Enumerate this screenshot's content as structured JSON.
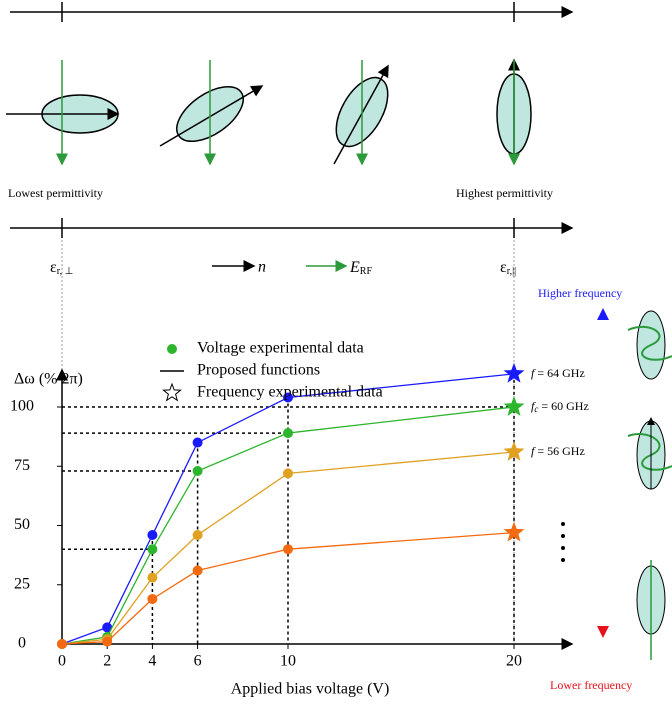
{
  "chart_data": {
    "type": "line",
    "y_label": "Δω (% 2π)",
    "x_label": "Applied bias voltage (V)",
    "x": [
      0,
      2,
      4,
      6,
      10,
      20
    ],
    "xlim": [
      0,
      20
    ],
    "ylim": [
      0,
      116
    ],
    "xticks": [
      0,
      2,
      4,
      6,
      10,
      20
    ],
    "yticks": [
      0,
      25,
      50,
      75,
      100
    ],
    "legend": [
      "Voltage experimental data",
      "Proposed functions",
      "Frequency experimental data"
    ],
    "series": [
      {
        "color": "#1a1aff",
        "values": [
          0,
          7,
          46,
          85,
          104,
          114
        ],
        "label_symbol": "f",
        "label_text": "= 64 GHz"
      },
      {
        "color": "#2db52d",
        "values": [
          0,
          3,
          40,
          73,
          89,
          100
        ],
        "label_symbol": "f",
        "label_subscript": "c",
        "label_text": "= 60 GHz"
      },
      {
        "color": "#e0a020",
        "values": [
          0,
          2,
          28,
          46,
          72,
          81
        ],
        "label_symbol": "f",
        "label_text": "= 56 GHz"
      },
      {
        "color": "#f46a10",
        "values": [
          0,
          1,
          19,
          31,
          40,
          47
        ]
      }
    ]
  },
  "diagram": {
    "lowest": "Lowest permittivity",
    "highest": "Highest permittivity",
    "eps_perp": "ε",
    "eps_perp_sub": "r, ⊥",
    "eps_par": "ε",
    "eps_par_sub": "r,||",
    "n_label": "n",
    "e_label": "E",
    "e_sub": "RF",
    "higher": "Higher frequency",
    "lower": "Lower frequency"
  }
}
